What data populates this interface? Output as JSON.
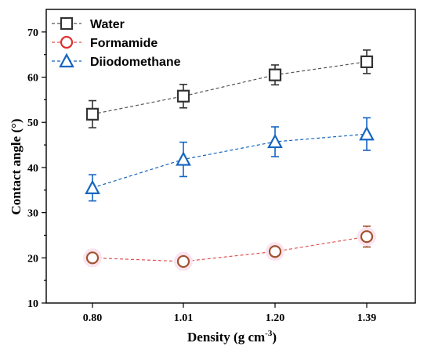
{
  "chart_data": {
    "type": "scatter",
    "categories": [
      "0.80",
      "1.01",
      "1.20",
      "1.39"
    ],
    "xlabel_main": "Density (g cm",
    "xlabel_sup": "-3",
    "xlabel_end": ")",
    "ylabel": "Contact angle (°)",
    "ylim": [
      10,
      75
    ],
    "yticks": [
      "10",
      "20",
      "30",
      "40",
      "50",
      "60",
      "70"
    ],
    "legend_position": "top-left",
    "series": [
      {
        "name": "Water",
        "marker": "square",
        "color": "#333333",
        "line_color": "#555555",
        "values": [
          51.8,
          55.8,
          60.5,
          63.4
        ],
        "errors": [
          3.0,
          2.6,
          2.2,
          2.6
        ]
      },
      {
        "name": "Formamide",
        "marker": "circle",
        "color": "#a0522d",
        "legend_color": "#e03030",
        "line_color": "#e05050",
        "values": [
          20.0,
          19.2,
          21.4,
          24.7
        ],
        "errors": [
          1.8,
          1.8,
          1.6,
          2.3
        ]
      },
      {
        "name": "Diiodomethane",
        "marker": "triangle",
        "color": "#1565c0",
        "line_color": "#1565c0",
        "values": [
          35.5,
          41.8,
          45.7,
          47.4
        ],
        "errors": [
          2.9,
          3.8,
          3.3,
          3.6
        ]
      }
    ]
  }
}
